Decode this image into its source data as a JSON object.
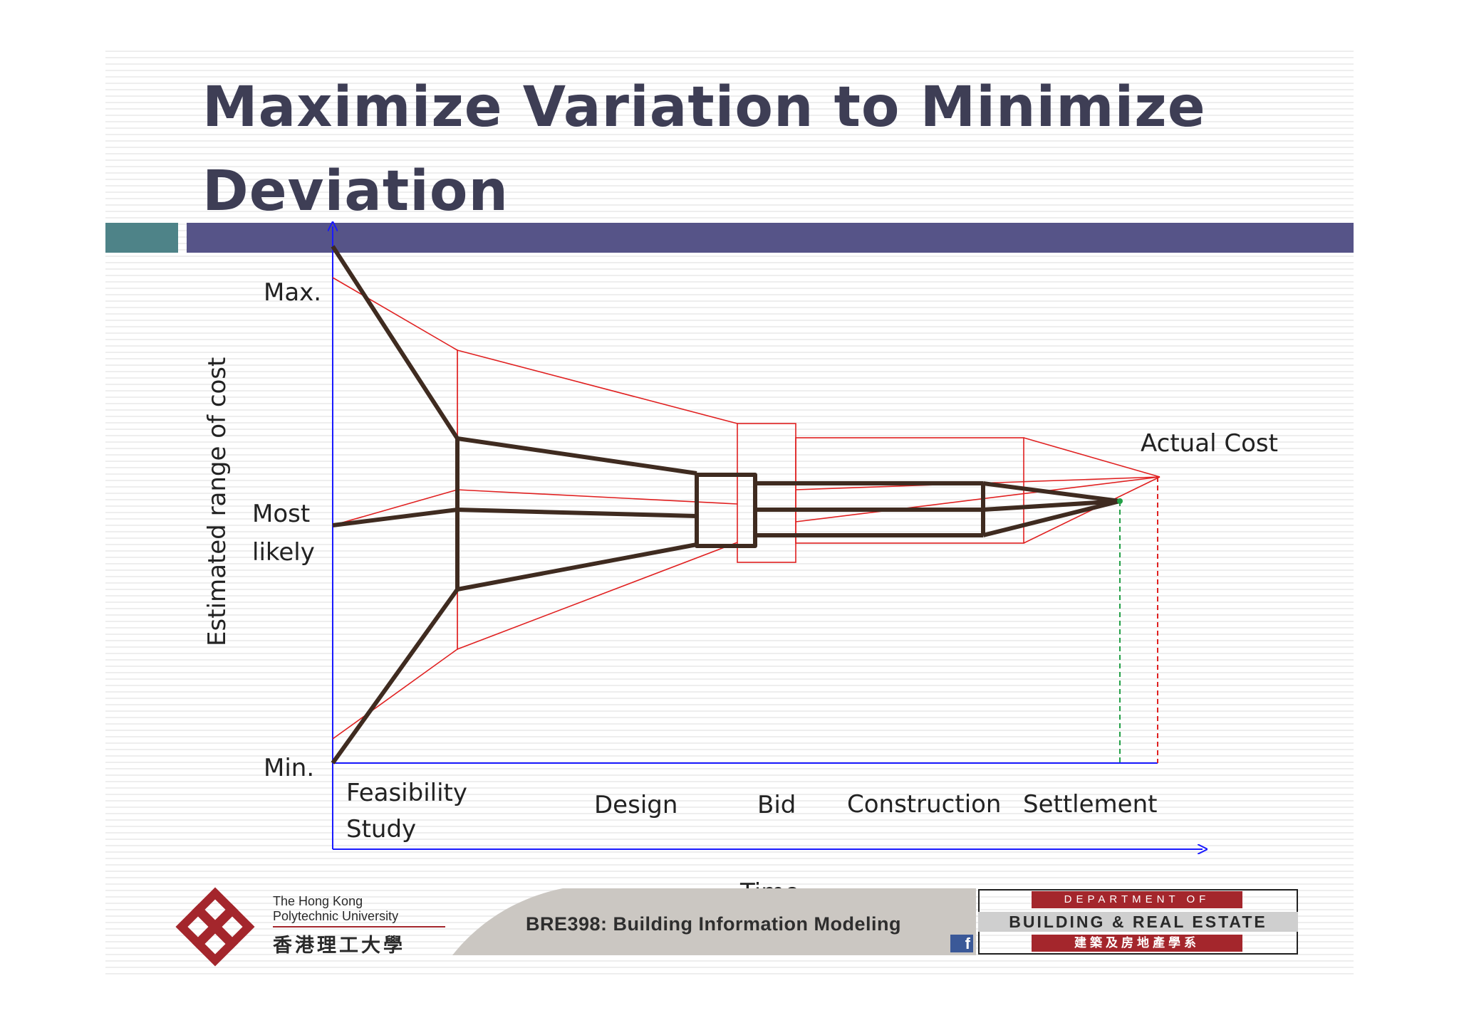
{
  "slide": {
    "title_line1": "Maximize Variation to Minimize",
    "title_line2": "Deviation"
  },
  "diagram": {
    "y_axis_label": "Estimated range of cost",
    "x_axis_label": "Time",
    "y_labels": {
      "max": "Max.",
      "most_likely_1": "Most",
      "most_likely_2": "likely",
      "min": "Min."
    },
    "phases": [
      {
        "line1": "Feasibility",
        "line2": "Study"
      },
      {
        "line1": "Design",
        "line2": ""
      },
      {
        "line1": "Bid",
        "line2": ""
      },
      {
        "line1": "Construction",
        "line2": ""
      },
      {
        "line1": "Settlement",
        "line2": ""
      }
    ],
    "actual_cost_label": "Actual Cost",
    "colors": {
      "axis": "#1a1aff",
      "funnel": "#3f2b20",
      "range": "#e02020",
      "green_dashed": "#22a046",
      "red_dashed": "#e02020"
    }
  },
  "footer": {
    "university_en_1": "The Hong Kong",
    "university_en_2": "Polytechnic University",
    "university_zh": "香港理工大學",
    "course": "BRE398: Building Information Modeling",
    "dept_top": "DEPARTMENT OF",
    "dept_mid": "BUILDING & REAL ESTATE",
    "dept_bot": "建築及房地產學系",
    "facebook_icon": "f"
  }
}
